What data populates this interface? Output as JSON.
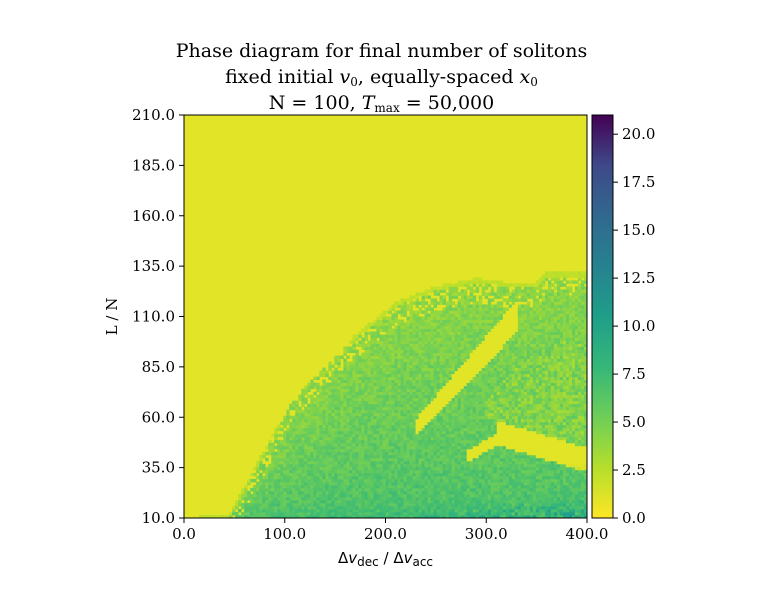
{
  "chart_data": {
    "type": "heatmap",
    "title": [
      "Phase diagram for final number of solitons",
      "fixed initial v0, equally-spaced x0",
      "N = 100, Tmax = 50,000"
    ],
    "title_parts": {
      "line1": "Phase diagram for final number of solitons",
      "line2_a": "fixed initial ",
      "line2_var1": "v",
      "line2_sub1": "0",
      "line2_b": ", equally-spaced ",
      "line2_var2": "x",
      "line2_sub2": "0",
      "line3_a": "N = 100, ",
      "line3_var": "T",
      "line3_sub": "max",
      "line3_b": " = 50,000"
    },
    "xlabel_parts": {
      "d1": "Δ",
      "v1": "v",
      "s1": "dec",
      "sep": " / ",
      "d2": "Δ",
      "v2": "v",
      "s2": "acc"
    },
    "ylabel": "L / N",
    "xlim": [
      0.0,
      400.0
    ],
    "ylim": [
      10.0,
      210.0
    ],
    "x_ticks": [
      "0.0",
      "100.0",
      "200.0",
      "300.0",
      "400.0"
    ],
    "y_ticks": [
      "10.0",
      "35.0",
      "60.0",
      "85.0",
      "110.0",
      "135.0",
      "160.0",
      "185.0",
      "210.0"
    ],
    "colorbar": {
      "colormap": "viridis",
      "reversed": true,
      "range": [
        0.0,
        21.0
      ],
      "ticks": [
        "0.0",
        "2.5",
        "5.0",
        "7.5",
        "10.0",
        "12.5",
        "15.0",
        "17.5",
        "20.0"
      ]
    },
    "background_value": 1,
    "regions": [
      {
        "description": "diagonal band",
        "x_start": 15,
        "y_start": 10,
        "x_end": 185,
        "y_end": 110,
        "value": 2
      },
      {
        "description": "main fan",
        "boundary_x": [
          45,
          110,
          160,
          210,
          250,
          290,
          320,
          350,
          360
        ],
        "boundary_y": [
          10,
          70,
          95,
          115,
          123,
          127,
          125,
          125,
          130
        ],
        "value_range": [
          3,
          7
        ]
      },
      {
        "description": "right lobe",
        "boundary_x": [
          300,
          330,
          360,
          390,
          400
        ],
        "boundary_y": [
          70,
          85,
          95,
          99,
          100
        ],
        "value_range": [
          3,
          6
        ]
      },
      {
        "description": "dense floor",
        "x_range": [
          100,
          400
        ],
        "y_range": [
          10,
          40
        ],
        "value_range": [
          6,
          12
        ]
      }
    ]
  },
  "colors": {
    "background": "#ffffff",
    "low": "#fde725",
    "high": "#440154"
  }
}
